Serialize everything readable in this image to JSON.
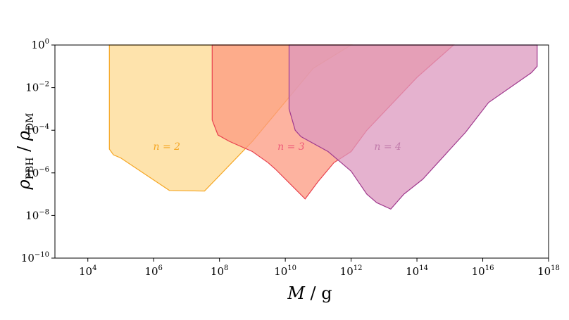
{
  "chart_data": {
    "type": "area",
    "title": "",
    "xlabel": {
      "var": "M",
      "unit": "g"
    },
    "ylabel": {
      "var": "ρ",
      "sub1": "PBH",
      "sub2": "DM"
    },
    "xscale": "log10",
    "yscale": "log10",
    "xlim": [
      1000.0,
      1e+18
    ],
    "ylim": [
      1e-10,
      1
    ],
    "xticks": [
      {
        "exp": "4",
        "value": 10000.0
      },
      {
        "exp": "6",
        "value": 1000000.0
      },
      {
        "exp": "8",
        "value": 100000000.0
      },
      {
        "exp": "10",
        "value": 10000000000.0
      },
      {
        "exp": "12",
        "value": 1000000000000.0
      },
      {
        "exp": "14",
        "value": 100000000000000.0
      },
      {
        "exp": "16",
        "value": 1e+16
      },
      {
        "exp": "18",
        "value": 1e+18
      }
    ],
    "yticks": [
      {
        "label": "10",
        "exp": "0",
        "value": 1
      },
      {
        "label": "10",
        "exp": "−2",
        "value": 0.01
      },
      {
        "label": "10",
        "exp": "−4",
        "value": 0.0001
      },
      {
        "label": "10",
        "exp": "−6",
        "value": 1e-06
      },
      {
        "label": "10",
        "exp": "−8",
        "value": 1e-08
      },
      {
        "label": "10",
        "exp": "−10",
        "value": 1e-10
      }
    ],
    "xtick_base": "10",
    "series": [
      {
        "name": "n = 2",
        "fill": "#fdd990",
        "stroke": "#f5a623",
        "label_color": "#f5a623",
        "label_at": [
          2500000.0,
          1.2e-05
        ],
        "points": [
          [
            45000.0,
            1
          ],
          [
            45000.0,
            1.3e-05
          ],
          [
            60000.0,
            7e-06
          ],
          [
            100000.0,
            5e-06
          ],
          [
            3000000.0,
            1.5e-07
          ],
          [
            35000000.0,
            1.4e-07
          ],
          [
            1000000000.0,
            3e-05
          ],
          [
            12000000000.0,
            0.003
          ],
          [
            70000000000.0,
            0.08
          ],
          [
            1000000000000.0,
            1
          ]
        ]
      },
      {
        "name": "n = 3",
        "fill": "#fc9a80",
        "stroke": "#e8404e",
        "label_color": "#ef5a78",
        "label_at": [
          15000000000.0,
          1.2e-05
        ],
        "points": [
          [
            60000000.0,
            1
          ],
          [
            60000000.0,
            0.0003
          ],
          [
            90000000.0,
            6e-05
          ],
          [
            200000000.0,
            3e-05
          ],
          [
            1000000000.0,
            1e-05
          ],
          [
            3000000000.0,
            3e-06
          ],
          [
            5000000000.0,
            1.5e-06
          ],
          [
            40000000000.0,
            6e-08
          ],
          [
            100000000000.0,
            4e-07
          ],
          [
            300000000000.0,
            3e-06
          ],
          [
            1000000000000.0,
            1e-05
          ],
          [
            3000000000000.0,
            0.0001
          ],
          [
            100000000000000.0,
            0.03
          ],
          [
            1300000000000000.0,
            1
          ]
        ]
      },
      {
        "name": "n = 4",
        "fill": "#dc98bf",
        "stroke": "#a03a8e",
        "label_color": "#c07aaa",
        "label_at": [
          13000000000000.0,
          1.2e-05
        ],
        "points": [
          [
            13000000000.0,
            1
          ],
          [
            13000000000.0,
            0.001
          ],
          [
            20000000000.0,
            0.0001
          ],
          [
            30000000000.0,
            5e-05
          ],
          [
            200000000000.0,
            1e-05
          ],
          [
            500000000000.0,
            3e-06
          ],
          [
            1000000000000.0,
            1.2e-06
          ],
          [
            3000000000000.0,
            1e-07
          ],
          [
            6000000000000.0,
            4e-08
          ],
          [
            16000000000000.0,
            2e-08
          ],
          [
            40000000000000.0,
            1e-07
          ],
          [
            150000000000000.0,
            5e-07
          ],
          [
            3000000000000000.0,
            8e-05
          ],
          [
            1.5e+16,
            0.002
          ],
          [
            3e+17,
            0.05
          ],
          [
            4.5e+17,
            0.1
          ],
          [
            4.5e+17,
            1
          ]
        ]
      }
    ],
    "grid": false,
    "legend": "none"
  }
}
